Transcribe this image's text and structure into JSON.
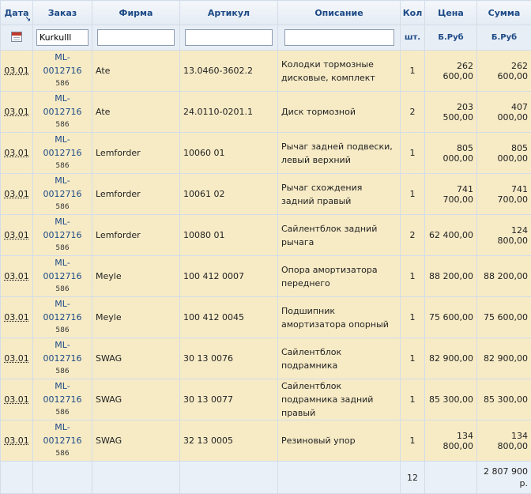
{
  "headers": {
    "date": "Дата",
    "order": "Заказ",
    "firm": "Фирма",
    "article": "Артикул",
    "description": "Описание",
    "qty": "Кол",
    "price": "Цена",
    "sum": "Сумма"
  },
  "units": {
    "qty": "шт.",
    "price": "Б.Руб",
    "sum": "Б.Руб"
  },
  "filters": {
    "order": "Kurkulll",
    "firm": "",
    "article": "",
    "description": ""
  },
  "rows": [
    {
      "date": "03.01",
      "order": "ML-0012716",
      "order_sub": "586",
      "firm": "Ate",
      "article": "13.0460-3602.2",
      "description": "Колодки тормозные дисковые, комплект",
      "qty": "1",
      "price": "262 600,00",
      "sum": "262 600,00"
    },
    {
      "date": "03.01",
      "order": "ML-0012716",
      "order_sub": "586",
      "firm": "Ate",
      "article": "24.0110-0201.1",
      "description": "Диск тормозной",
      "qty": "2",
      "price": "203 500,00",
      "sum": "407 000,00"
    },
    {
      "date": "03.01",
      "order": "ML-0012716",
      "order_sub": "586",
      "firm": "Lemforder",
      "article": "10060 01",
      "description": "Рычаг задней подвески, левый верхний",
      "qty": "1",
      "price": "805 000,00",
      "sum": "805 000,00"
    },
    {
      "date": "03.01",
      "order": "ML-0012716",
      "order_sub": "586",
      "firm": "Lemforder",
      "article": "10061 02",
      "description": "Рычаг схождения задний правый",
      "qty": "1",
      "price": "741 700,00",
      "sum": "741 700,00"
    },
    {
      "date": "03.01",
      "order": "ML-0012716",
      "order_sub": "586",
      "firm": "Lemforder",
      "article": "10080 01",
      "description": "Сайлентблок задний рычага",
      "qty": "2",
      "price": "62 400,00",
      "sum": "124 800,00"
    },
    {
      "date": "03.01",
      "order": "ML-0012716",
      "order_sub": "586",
      "firm": "Meyle",
      "article": "100 412 0007",
      "description": "Опора амортизатора переднего",
      "qty": "1",
      "price": "88 200,00",
      "sum": "88 200,00"
    },
    {
      "date": "03.01",
      "order": "ML-0012716",
      "order_sub": "586",
      "firm": "Meyle",
      "article": "100 412 0045",
      "description": "Подшипник амортизатора опорный",
      "qty": "1",
      "price": "75 600,00",
      "sum": "75 600,00"
    },
    {
      "date": "03.01",
      "order": "ML-0012716",
      "order_sub": "586",
      "firm": "SWAG",
      "article": "30 13 0076",
      "description": "Сайлентблок подрамника",
      "qty": "1",
      "price": "82 900,00",
      "sum": "82 900,00"
    },
    {
      "date": "03.01",
      "order": "ML-0012716",
      "order_sub": "586",
      "firm": "SWAG",
      "article": "30 13 0077",
      "description": "Сайлентблок подрамника задний правый",
      "qty": "1",
      "price": "85 300,00",
      "sum": "85 300,00"
    },
    {
      "date": "03.01",
      "order": "ML-0012716",
      "order_sub": "586",
      "firm": "SWAG",
      "article": "32 13 0005",
      "description": "Резиновый упор",
      "qty": "1",
      "price": "134 800,00",
      "sum": "134 800,00"
    }
  ],
  "totals": {
    "qty": "12",
    "sum": "2 807 900 р."
  },
  "icons": {
    "date_filter": "calendar-icon",
    "sort": "sort-arrow-icon"
  }
}
